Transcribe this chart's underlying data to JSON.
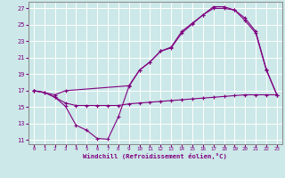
{
  "background_color": "#cce8e8",
  "grid_color": "#ffffff",
  "line_color": "#800080",
  "xlabel": "Windchill (Refroidissement éolien,°C)",
  "ylabel_ticks": [
    11,
    13,
    15,
    17,
    19,
    21,
    23,
    25,
    27
  ],
  "xlabel_ticks": [
    0,
    1,
    2,
    3,
    4,
    5,
    6,
    7,
    8,
    9,
    10,
    11,
    12,
    13,
    14,
    15,
    16,
    17,
    18,
    19,
    20,
    21,
    22,
    23
  ],
  "xlim": [
    -0.5,
    23.5
  ],
  "ylim": [
    10.5,
    27.8
  ],
  "series1_x": [
    0,
    1,
    2,
    3,
    4,
    5,
    6,
    7,
    8,
    9,
    10,
    11,
    12,
    13,
    14,
    15,
    16,
    17,
    18,
    19,
    20,
    21,
    22,
    23
  ],
  "series1_y": [
    17.0,
    16.8,
    16.2,
    15.1,
    12.8,
    12.2,
    11.2,
    11.1,
    13.8,
    17.5,
    19.5,
    20.5,
    21.8,
    22.2,
    24.0,
    25.1,
    26.2,
    27.0,
    27.0,
    26.8,
    25.5,
    24.0,
    19.5,
    16.5
  ],
  "series2_x": [
    0,
    1,
    2,
    3,
    4,
    5,
    6,
    7,
    8,
    9,
    10,
    11,
    12,
    13,
    14,
    15,
    16,
    17,
    18,
    19,
    20,
    21,
    22,
    23
  ],
  "series2_y": [
    17.0,
    16.8,
    16.2,
    15.5,
    15.2,
    15.2,
    15.2,
    15.2,
    15.2,
    15.4,
    15.5,
    15.6,
    15.7,
    15.8,
    15.9,
    16.0,
    16.1,
    16.2,
    16.3,
    16.4,
    16.5,
    16.5,
    16.5,
    16.5
  ],
  "series3_x": [
    0,
    2,
    3,
    9,
    10,
    11,
    12,
    13,
    14,
    15,
    16,
    17,
    18,
    19,
    20,
    21,
    22,
    23
  ],
  "series3_y": [
    17.0,
    16.5,
    17.0,
    17.6,
    19.5,
    20.5,
    21.8,
    22.3,
    24.2,
    25.2,
    26.2,
    27.2,
    27.2,
    26.8,
    25.8,
    24.2,
    19.6,
    16.5
  ]
}
